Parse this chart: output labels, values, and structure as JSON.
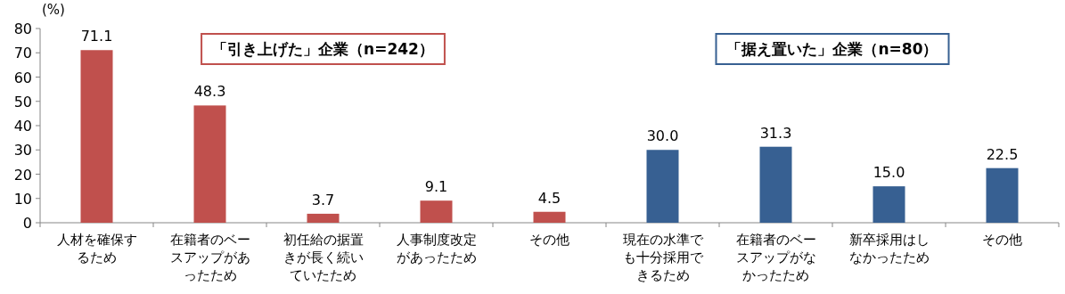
{
  "chart_data": {
    "type": "bar",
    "ylabel": "(%)",
    "categories": [
      "人材を確保するため",
      "在籍者のベースアップがあったため",
      "初任給の据置きが長く続いていたため",
      "人事制度改定があったため",
      "その他",
      "現在の水準でも十分採用できるため",
      "在籍者のベースアップがなかったため",
      "新卒採用はしなかったため",
      "その他"
    ],
    "series": [
      {
        "name": "「引き上げた」企業（n=242）",
        "color": "#c0504d",
        "values": [
          71.1,
          48.3,
          3.7,
          9.1,
          4.5,
          null,
          null,
          null,
          null
        ],
        "value_labels": [
          "71.1",
          "48.3",
          "3.7",
          "9.1",
          "4.5",
          null,
          null,
          null,
          null
        ]
      },
      {
        "name": "「据え置いた」企業（n=80）",
        "color": "#376092",
        "values": [
          null,
          null,
          null,
          null,
          null,
          30.0,
          31.3,
          15.0,
          22.5
        ],
        "value_labels": [
          null,
          null,
          null,
          null,
          null,
          "30.0",
          "31.3",
          "15.0",
          "22.5"
        ]
      }
    ],
    "ylim": [
      0,
      80
    ],
    "yticks": [
      0,
      10,
      20,
      30,
      40,
      50,
      60,
      70,
      80
    ]
  }
}
